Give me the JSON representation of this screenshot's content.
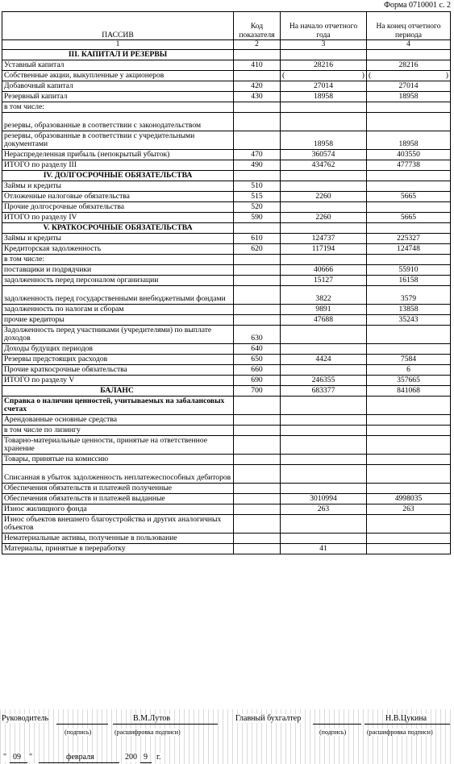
{
  "form_label": "Форма 0710001 с. 2",
  "headers": {
    "c1": "ПАССИВ",
    "c2": "Код показателя",
    "c3": "На начало отчетного года",
    "c4": "На конец отчетного периода"
  },
  "col_numbers": [
    "1",
    "2",
    "3",
    "4"
  ],
  "rows": [
    {
      "type": "section",
      "label": "III. КАПИТАЛ И РЕЗЕРВЫ"
    },
    {
      "label": "Уставный капитал",
      "code": "410",
      "start": "28216",
      "end": "28216"
    },
    {
      "label": "Собственные акции, выкупленные у акционеров",
      "paren": true,
      "open": "(",
      "close": ")"
    },
    {
      "label": "Добавочный капитал",
      "code": "420",
      "start": "27014",
      "end": "27014"
    },
    {
      "label": "Резервный капитал",
      "code": "430",
      "start": "18958",
      "end": "18958"
    },
    {
      "label": "в том числе:",
      "indent": "in2",
      "noborder": true
    },
    {
      "label": "резервы, образованные в соответствии с законодательством",
      "indent": "in1",
      "two": true,
      "noborder": true
    },
    {
      "label": "резервы, образованные в соответствии с учредительными документами",
      "indent": "in1",
      "start": "18958",
      "end": "18958",
      "two": true
    },
    {
      "label": "Нераспределенная прибыль (непокрытый убыток)",
      "code": "470",
      "start": "360574",
      "end": "403550"
    },
    {
      "label": "ИТОГО по разделу III",
      "code": "490",
      "start": "434762",
      "end": "477738",
      "indent": "in3"
    },
    {
      "type": "section",
      "label": "IV. ДОЛГОСРОЧНЫЕ ОБЯЗАТЕЛЬСТВА"
    },
    {
      "label": "Займы и кредиты",
      "code": "510"
    },
    {
      "label": "Отложенные налоговые обязательства",
      "code": "515",
      "start": "2260",
      "end": "5665"
    },
    {
      "label": "Прочие долгосрочные обязательства",
      "code": "520"
    },
    {
      "label": "ИТОГО по разделу IV",
      "code": "590",
      "start": "2260",
      "end": "5665",
      "indent": "in3"
    },
    {
      "type": "section",
      "label": "V. КРАТКОСРОЧНЫЕ ОБЯЗАТЕЛЬСТВА"
    },
    {
      "label": "Займы и кредиты",
      "code": "610",
      "start": "124737",
      "end": "225327"
    },
    {
      "label": "Кредиторская задолженность",
      "code": "620",
      "start": "117194",
      "end": "124748"
    },
    {
      "label": "в том числе:",
      "indent": "in2",
      "noborder": true
    },
    {
      "label": "поставщики и подрядчики",
      "indent": "in1",
      "start": "40666",
      "end": "55910"
    },
    {
      "label": "задолженность перед персоналом организации",
      "indent": "in1",
      "start": "15127",
      "end": "16158"
    },
    {
      "label": "задолженность перед государственными внебюджетными фондами",
      "indent": "in1",
      "start": "3822",
      "end": "3579",
      "two": true
    },
    {
      "label": "задолженность по налогам и сборам",
      "indent": "in1",
      "start": "9891",
      "end": "13858"
    },
    {
      "label": "прочие кредиторы",
      "indent": "in1",
      "start": "47688",
      "end": "35243"
    },
    {
      "label": "Задолженность перед участниками (учредителями) по выплате доходов",
      "code": "630",
      "two": true
    },
    {
      "label": "Доходы будущих периодов",
      "code": "640"
    },
    {
      "label": "Резервы предстоящих расходов",
      "code": "650",
      "start": "4424",
      "end": "7584"
    },
    {
      "label": "Прочие краткосрочные обязательства",
      "code": "660",
      "end": "6"
    },
    {
      "label": "ИТОГО по разделу V",
      "code": "690",
      "start": "246355",
      "end": "357665",
      "indent": "in3"
    },
    {
      "label": "БАЛАНС",
      "code": "700",
      "start": "683377",
      "end": "841068",
      "balance": true
    },
    {
      "label": "Справка о наличии ценностей, учитываемых на забалансовых счетах",
      "bold": true,
      "two": true
    },
    {
      "label": "Арендованные основные средства"
    },
    {
      "label": "в том числе по лизингу",
      "indent": "in1"
    },
    {
      "label": "Товарно-материальные ценности, принятые на ответственное хранение",
      "two": true
    },
    {
      "label": "Товары, принятые на комиссию"
    },
    {
      "label": "Списанная в убыток задолженность неплатежеспособных дебиторов",
      "two": true
    },
    {
      "label": "Обеспечения обязательств и платежей полученные"
    },
    {
      "label": "Обеспечения обязательств и платежей выданные",
      "start": "3010994",
      "end": "4998035"
    },
    {
      "label": "Износ жилищного фонда",
      "start": "263",
      "end": "263"
    },
    {
      "label": "Износ объектов внешнего благоустройства и других аналогичных объектов",
      "two": true
    },
    {
      "label": "Нематериальные активы, полученные в пользование"
    },
    {
      "label": "Материалы, принятые в переработку",
      "start": "41"
    }
  ],
  "signatures": {
    "head_label": "Руководитель",
    "head_name": "В.М.Лутов",
    "accountant_label": "Главный бухгалтер",
    "accountant_name": "Н.В.Цукина",
    "sign_caption": "(подпись)",
    "decode_caption": "(расшифровка подписи)",
    "date_day": "09",
    "date_month": "февраля",
    "date_year_prefix": "200",
    "date_year_digit": "9",
    "date_suffix": "г."
  }
}
